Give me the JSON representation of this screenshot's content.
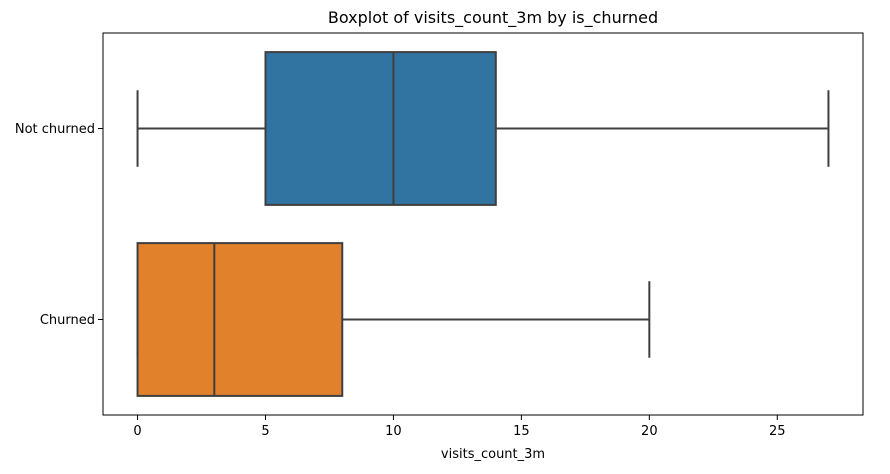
{
  "chart_data": {
    "type": "boxplot",
    "title": "Boxplot of visits_count_3m by is_churned",
    "xlabel": "visits_count_3m",
    "ylabel": "",
    "orientation": "horizontal",
    "xlim": [
      -1.35,
      28.35
    ],
    "xticks": [
      0,
      5,
      10,
      15,
      20,
      25
    ],
    "xtick_labels": [
      "0",
      "5",
      "10",
      "15",
      "20",
      "25"
    ],
    "grid": false,
    "categories": [
      "Not churned",
      "Churned"
    ],
    "boxes": [
      {
        "category": "Not churned",
        "whisker_low": 0,
        "q1": 5,
        "median": 10,
        "q3": 14,
        "whisker_high": 27,
        "color": "#3274a1"
      },
      {
        "category": "Churned",
        "whisker_low": 0,
        "q1": 0,
        "median": 3,
        "q3": 8,
        "whisker_high": 20,
        "color": "#e1812c"
      }
    ],
    "line_color": "#3f3f3f"
  }
}
